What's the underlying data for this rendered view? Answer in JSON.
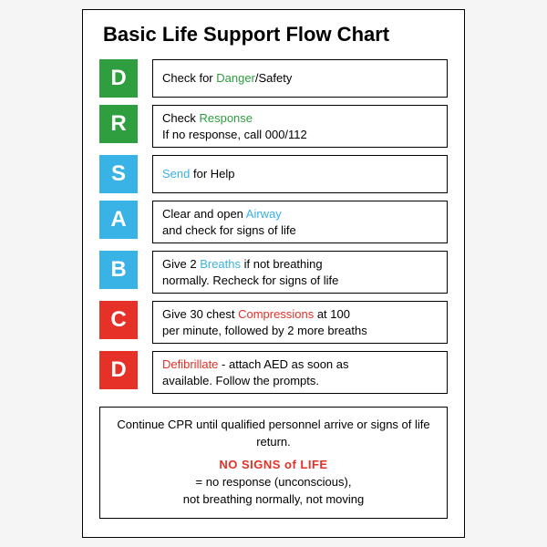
{
  "title": "Basic Life Support Flow Chart",
  "colors": {
    "green": "#2e9e3f",
    "blue": "#39b2e6",
    "red": "#e53127",
    "text": "#000000",
    "white": "#ffffff",
    "border": "#000000"
  },
  "typography": {
    "title_fontsize": 22,
    "body_fontsize": 13,
    "letter_fontsize": 24
  },
  "steps": [
    {
      "letter": "D",
      "box_color": "#2e9e3f",
      "line1_pre": "Check for ",
      "line1_hl": "Danger",
      "line1_post": "/Safety",
      "hl_color": "#2e9e3f",
      "line2": ""
    },
    {
      "letter": "R",
      "box_color": "#2e9e3f",
      "line1_pre": "Check ",
      "line1_hl": "Response",
      "line1_post": "",
      "hl_color": "#2e9e3f",
      "line2": "If no response, call 000/112"
    },
    {
      "letter": "S",
      "box_color": "#39b2e6",
      "line1_pre": "",
      "line1_hl": "Send",
      "line1_post": " for Help",
      "hl_color": "#39b2e6",
      "line2": ""
    },
    {
      "letter": "A",
      "box_color": "#39b2e6",
      "line1_pre": "Clear and open ",
      "line1_hl": "Airway",
      "line1_post": "",
      "hl_color": "#39b2e6",
      "line2": "and check for signs of life"
    },
    {
      "letter": "B",
      "box_color": "#39b2e6",
      "line1_pre": "Give 2 ",
      "line1_hl": "Breaths",
      "line1_post": " if not breathing",
      "hl_color": "#39b2e6",
      "line2": "normally. Recheck for signs of life"
    },
    {
      "letter": "C",
      "box_color": "#e53127",
      "line1_pre": "Give 30 chest ",
      "line1_hl": "Compressions",
      "line1_post": " at 100",
      "hl_color": "#e53127",
      "line2": "per minute, followed by 2 more breaths"
    },
    {
      "letter": "D",
      "box_color": "#e53127",
      "line1_pre": "",
      "line1_hl": "Defibrillate",
      "line1_post": " - attach AED as soon as",
      "hl_color": "#e53127",
      "line2": "available. Follow the prompts."
    }
  ],
  "footer": {
    "line1": "Continue CPR until qualified personnel arrive or signs of life return.",
    "heading": "NO SIGNS of LIFE",
    "heading_color": "#e53127",
    "sub1": "= no response (unconscious),",
    "sub2": "not breathing normally, not moving"
  }
}
